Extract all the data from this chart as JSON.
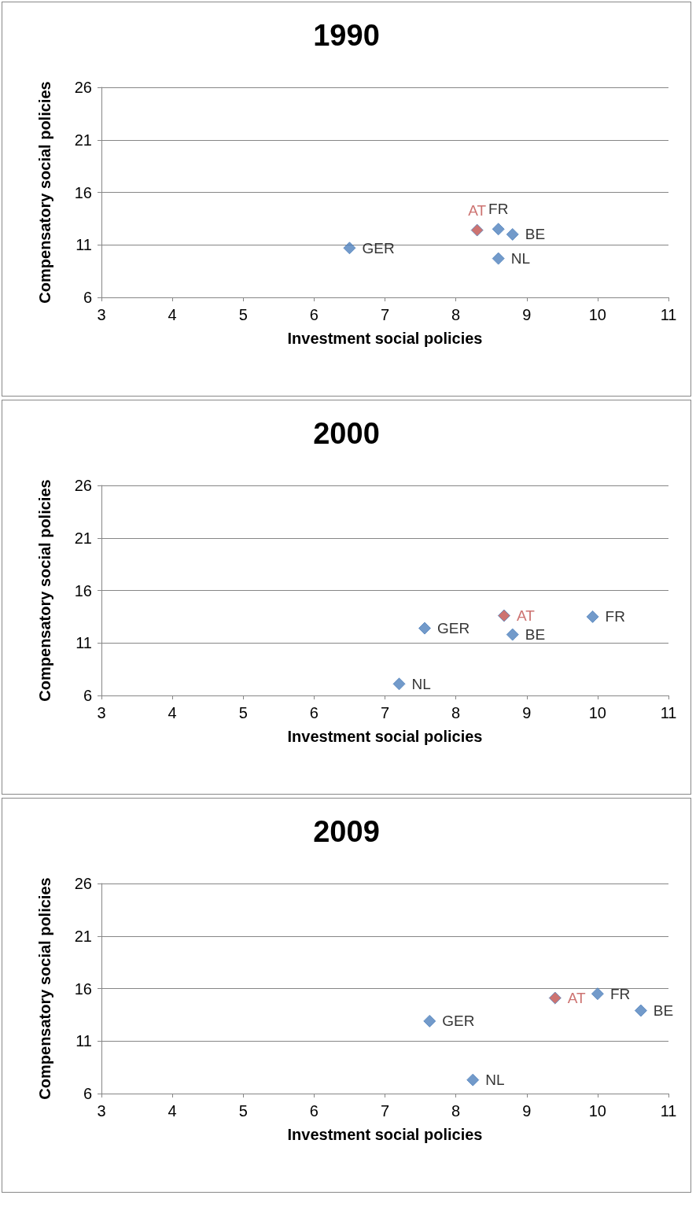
{
  "chart_data": [
    {
      "type": "scatter",
      "title": "1990",
      "xlabel": "Investment social policies",
      "ylabel": "Compensatory social policies",
      "xlim": [
        3,
        11
      ],
      "xticks": [
        3,
        4,
        5,
        6,
        7,
        8,
        9,
        10,
        11
      ],
      "ylim": [
        6,
        26
      ],
      "yticks": [
        6,
        11,
        16,
        21,
        26
      ],
      "grid": "y",
      "marker": "diamond",
      "series": [
        {
          "name": "GER",
          "color": "#4f81bd",
          "x": [
            6.5
          ],
          "values": [
            10.7
          ]
        },
        {
          "name": "AT",
          "color": "#c0504d",
          "x": [
            8.3
          ],
          "values": [
            12.4
          ]
        },
        {
          "name": "FR",
          "color": "#4f81bd",
          "x": [
            8.6
          ],
          "values": [
            12.5
          ]
        },
        {
          "name": "BE",
          "color": "#4f81bd",
          "x": [
            8.8
          ],
          "values": [
            12.0
          ]
        },
        {
          "name": "NL",
          "color": "#4f81bd",
          "x": [
            8.6
          ],
          "values": [
            9.7
          ]
        }
      ]
    },
    {
      "type": "scatter",
      "title": "2000",
      "xlabel": "Investment social policies",
      "ylabel": "Compensatory social policies",
      "xlim": [
        3,
        11
      ],
      "xticks": [
        3,
        4,
        5,
        6,
        7,
        8,
        9,
        10,
        11
      ],
      "ylim": [
        6,
        26
      ],
      "yticks": [
        6,
        11,
        16,
        21,
        26
      ],
      "grid": "y",
      "marker": "diamond",
      "series": [
        {
          "name": "GER",
          "color": "#4f81bd",
          "x": [
            7.56
          ],
          "values": [
            12.4
          ]
        },
        {
          "name": "NL",
          "color": "#4f81bd",
          "x": [
            7.2
          ],
          "values": [
            7.1
          ]
        },
        {
          "name": "AT",
          "color": "#c0504d",
          "x": [
            8.68
          ],
          "values": [
            13.6
          ]
        },
        {
          "name": "BE",
          "color": "#4f81bd",
          "x": [
            8.8
          ],
          "values": [
            11.8
          ]
        },
        {
          "name": "FR",
          "color": "#4f81bd",
          "x": [
            9.93
          ],
          "values": [
            13.5
          ]
        }
      ]
    },
    {
      "type": "scatter",
      "title": "2009",
      "xlabel": "Investment social policies",
      "ylabel": "Compensatory social policies",
      "xlim": [
        3,
        11
      ],
      "xticks": [
        3,
        4,
        5,
        6,
        7,
        8,
        9,
        10,
        11
      ],
      "ylim": [
        6,
        26
      ],
      "yticks": [
        6,
        11,
        16,
        21,
        26
      ],
      "grid": "y",
      "marker": "diamond",
      "series": [
        {
          "name": "GER",
          "color": "#4f81bd",
          "x": [
            7.63
          ],
          "values": [
            12.9
          ]
        },
        {
          "name": "NL",
          "color": "#4f81bd",
          "x": [
            8.24
          ],
          "values": [
            7.3
          ]
        },
        {
          "name": "AT",
          "color": "#c0504d",
          "x": [
            9.4
          ],
          "values": [
            15.1
          ]
        },
        {
          "name": "FR",
          "color": "#4f81bd",
          "x": [
            10.0
          ],
          "values": [
            15.5
          ]
        },
        {
          "name": "BE",
          "color": "#4f81bd",
          "x": [
            10.61
          ],
          "values": [
            13.9
          ]
        }
      ]
    }
  ]
}
